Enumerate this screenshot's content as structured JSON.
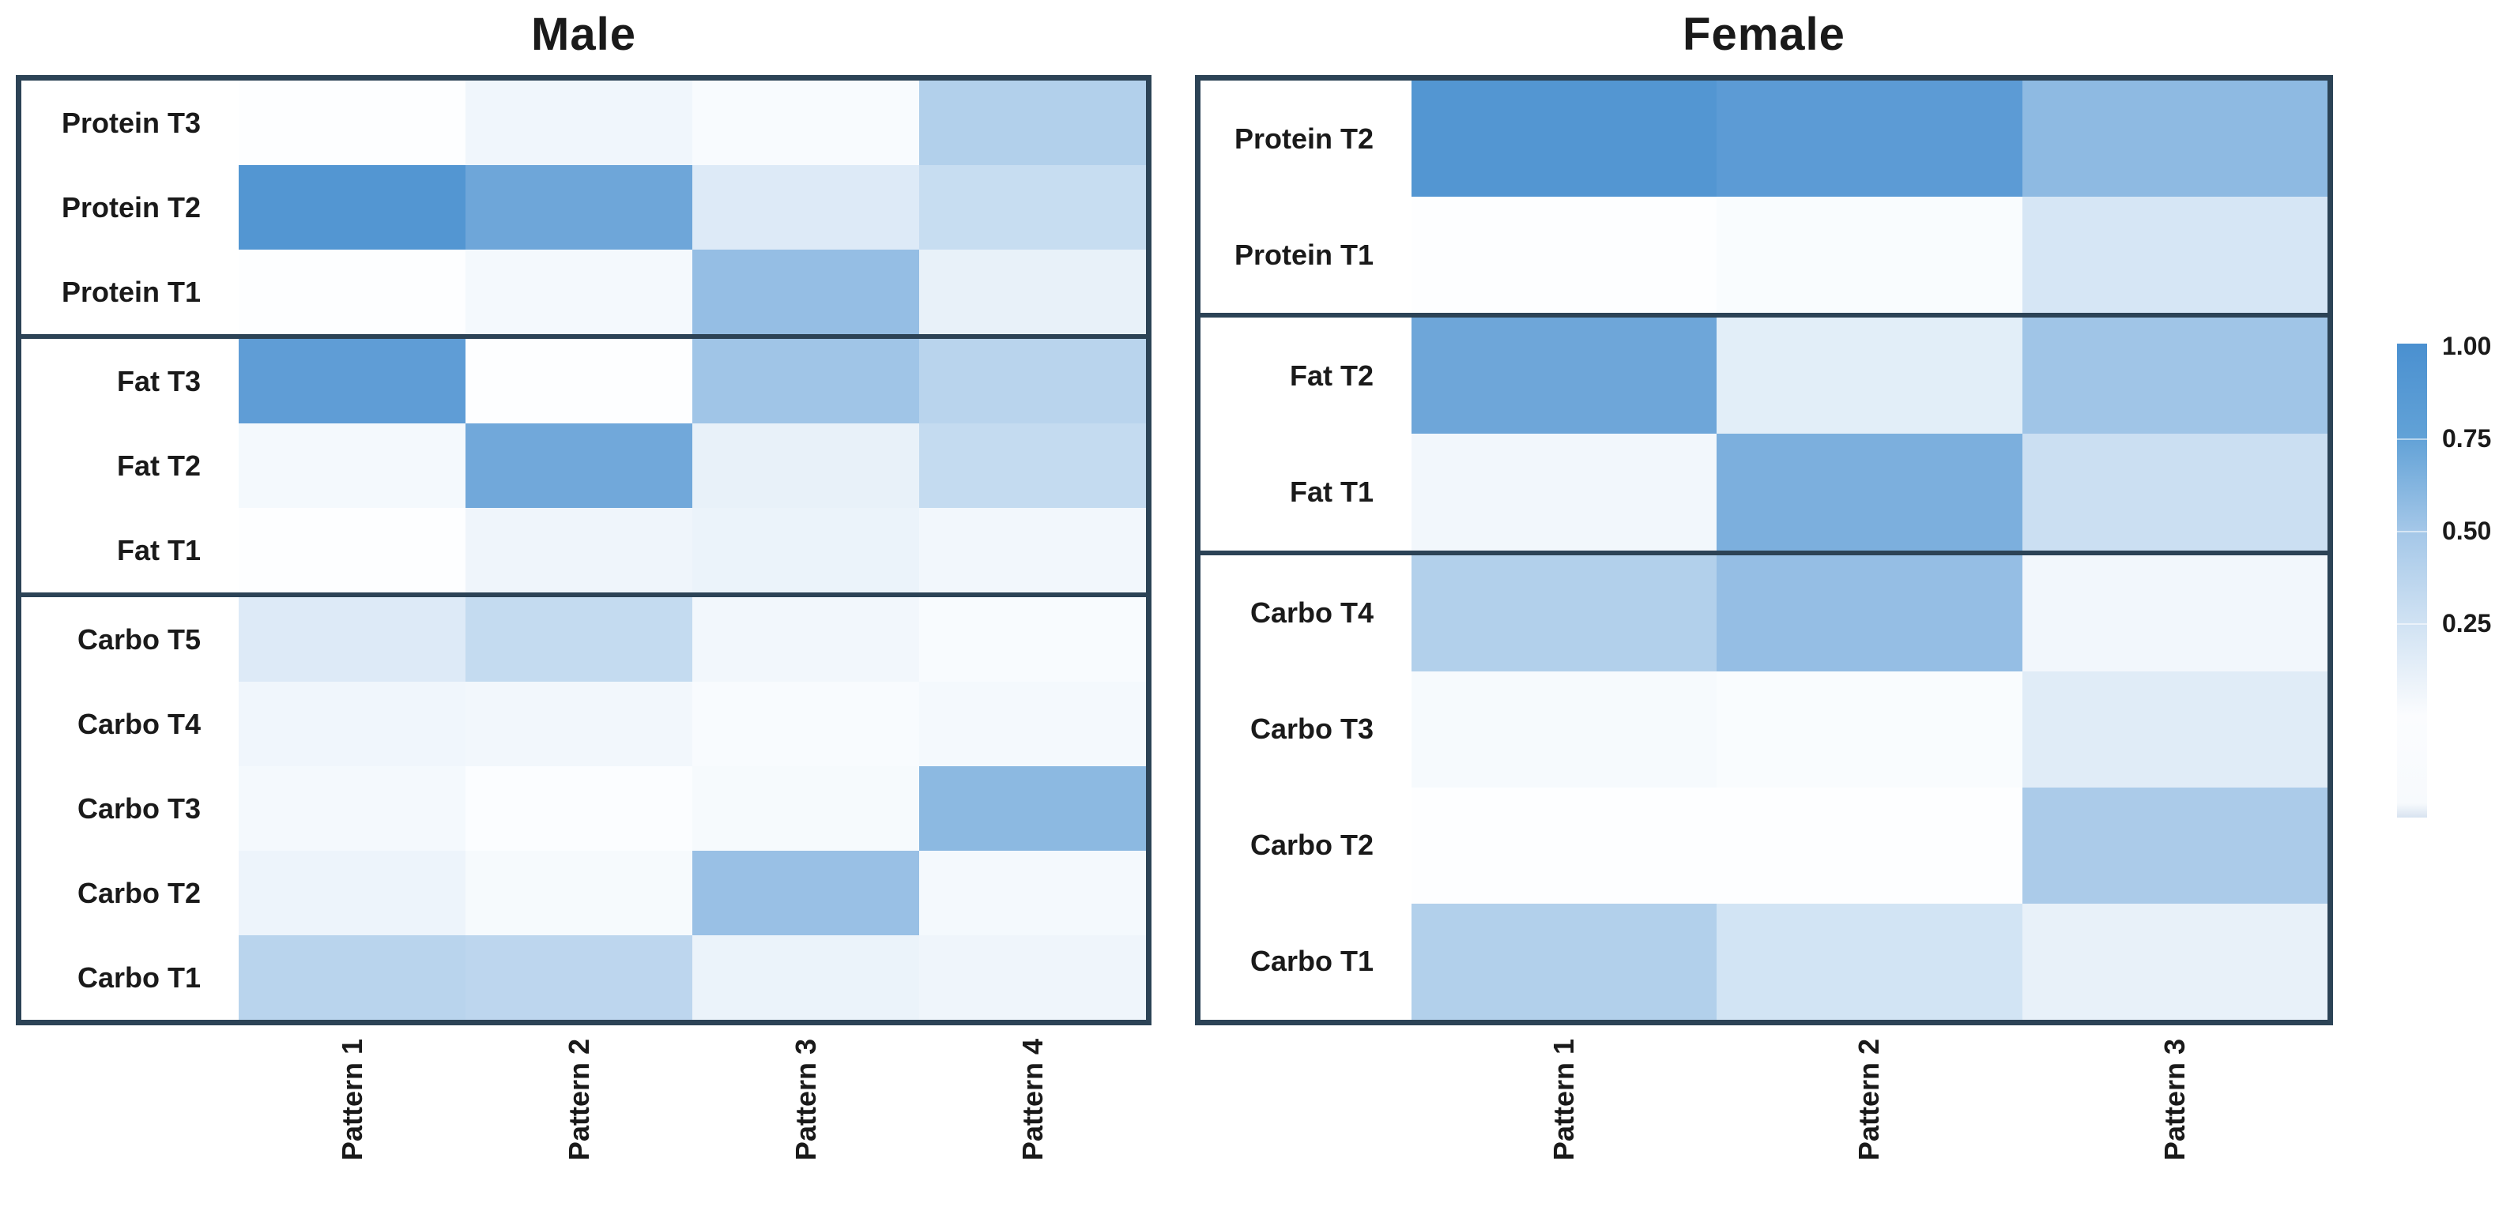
{
  "titles": {
    "male": "Male",
    "female": "Female"
  },
  "legend": {
    "ticks": [
      "1.00",
      "0.75",
      "0.50",
      "0.25"
    ],
    "min": 0,
    "max": 1,
    "color_high": "#4A90D0",
    "color_low": "#FDFEFF"
  },
  "chart_data": [
    {
      "type": "heatmap",
      "title": "Male",
      "x_categories": [
        "Pattern 1",
        "Pattern 2",
        "Pattern 3",
        "Pattern 4"
      ],
      "value_range": [
        0,
        1
      ],
      "row_groups": [
        {
          "name": "Protein",
          "rows": [
            {
              "label": "Protein T3",
              "values": [
                0.0,
                0.07,
                0.03,
                0.42
              ]
            },
            {
              "label": "Protein T2",
              "values": [
                0.95,
                0.8,
                0.18,
                0.3
              ]
            },
            {
              "label": "Protein T1",
              "values": [
                0.0,
                0.05,
                0.58,
                0.12
              ]
            }
          ]
        },
        {
          "name": "Fat",
          "rows": [
            {
              "label": "Fat T3",
              "values": [
                0.88,
                0.0,
                0.52,
                0.38
              ]
            },
            {
              "label": "Fat T2",
              "values": [
                0.05,
                0.78,
                0.12,
                0.32
              ]
            },
            {
              "label": "Fat T1",
              "values": [
                0.0,
                0.08,
                0.1,
                0.06
              ]
            }
          ]
        },
        {
          "name": "Carbo",
          "rows": [
            {
              "label": "Carbo T5",
              "values": [
                0.18,
                0.32,
                0.06,
                0.03
              ]
            },
            {
              "label": "Carbo T4",
              "values": [
                0.07,
                0.06,
                0.03,
                0.05
              ]
            },
            {
              "label": "Carbo T3",
              "values": [
                0.05,
                0.01,
                0.04,
                0.63
              ]
            },
            {
              "label": "Carbo T2",
              "values": [
                0.09,
                0.04,
                0.56,
                0.05
              ]
            },
            {
              "label": "Carbo T1",
              "values": [
                0.38,
                0.36,
                0.1,
                0.08
              ]
            }
          ]
        }
      ]
    },
    {
      "type": "heatmap",
      "title": "Female",
      "x_categories": [
        "Pattern 1",
        "Pattern 2",
        "Pattern 3"
      ],
      "value_range": [
        0,
        1
      ],
      "row_groups": [
        {
          "name": "Protein",
          "rows": [
            {
              "label": "Protein T2",
              "values": [
                0.95,
                0.9,
                0.62
              ]
            },
            {
              "label": "Protein T1",
              "values": [
                0.0,
                0.02,
                0.22
              ]
            }
          ]
        },
        {
          "name": "Fat",
          "rows": [
            {
              "label": "Fat T2",
              "values": [
                0.8,
                0.15,
                0.52
              ]
            },
            {
              "label": "Fat T1",
              "values": [
                0.06,
                0.72,
                0.28
              ]
            }
          ]
        },
        {
          "name": "Carbo",
          "rows": [
            {
              "label": "Carbo T4",
              "values": [
                0.42,
                0.58,
                0.06
              ]
            },
            {
              "label": "Carbo T3",
              "values": [
                0.04,
                0.02,
                0.16
              ]
            },
            {
              "label": "Carbo T2",
              "values": [
                0.0,
                0.0,
                0.46
              ]
            },
            {
              "label": "Carbo T1",
              "values": [
                0.42,
                0.24,
                0.12
              ]
            }
          ]
        }
      ]
    }
  ]
}
